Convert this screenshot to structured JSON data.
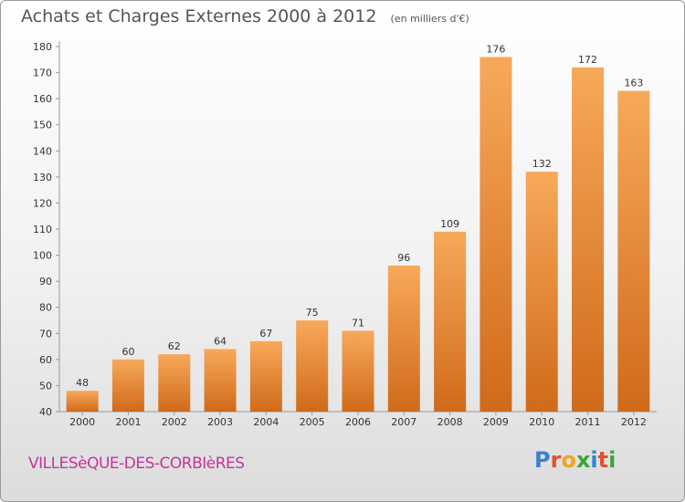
{
  "header": {
    "title": "Achats et Charges Externes 2000 à 2012",
    "subtitle": "(en milliers d'€)"
  },
  "footer": {
    "commune": "VILLESèQUE-DES-CORBIèRES",
    "brand_letters": [
      "P",
      "r",
      "o",
      "x",
      "i",
      "t",
      "i"
    ],
    "brand_colors": [
      "#3a7fd0",
      "#e3502c",
      "#f2a21c",
      "#3aa53a",
      "#2f87d0",
      "#e3502c",
      "#3aa53a"
    ]
  },
  "chart_data": {
    "type": "bar",
    "title": "Achats et Charges Externes 2000 à 2012",
    "subtitle": "(en milliers d'€)",
    "categories": [
      "2000",
      "2001",
      "2002",
      "2003",
      "2004",
      "2005",
      "2006",
      "2007",
      "2008",
      "2009",
      "2010",
      "2011",
      "2012"
    ],
    "values": [
      48,
      60,
      62,
      64,
      67,
      75,
      71,
      96,
      109,
      176,
      132,
      172,
      163
    ],
    "ylim": [
      40,
      180
    ],
    "yticks": [
      40,
      50,
      60,
      70,
      80,
      90,
      100,
      110,
      120,
      130,
      140,
      150,
      160,
      170,
      180
    ],
    "grid": false,
    "bar_color_light": "#f7a95a",
    "bar_color_dark": "#d06a1a"
  }
}
